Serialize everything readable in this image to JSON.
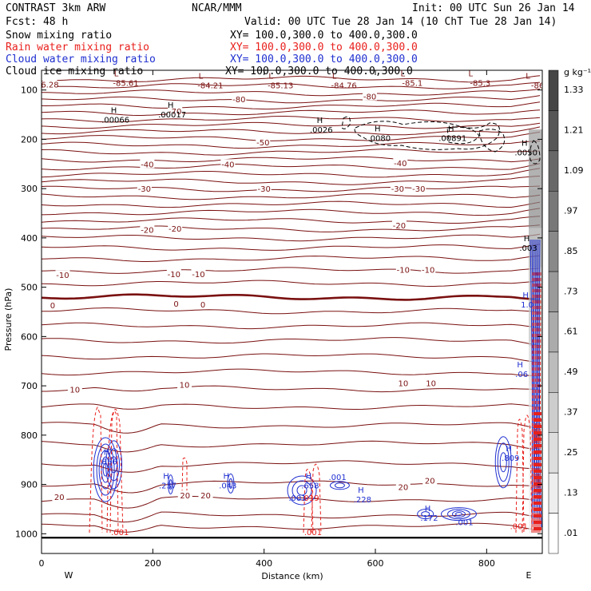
{
  "header": {
    "title": "CONTRAST  3km ARW",
    "center": "NCAR/MMM",
    "init": "Init: 00 UTC Sun 26 Jan 14",
    "fcst": "Fcst:   48 h",
    "valid": "Valid: 00 UTC Tue 28 Jan 14 (10 ChT Tue 28 Jan 14)"
  },
  "legend": [
    {
      "label": "Snow mixing ratio",
      "xy": "XY= 100.0,300.0 to 400.0,300.0",
      "color": "#000000"
    },
    {
      "label": "Rain water mixing ratio",
      "xy": "XY= 100.0,300.0 to 400.0,300.0",
      "color": "#e8201c"
    },
    {
      "label": "Cloud water mixing ratio",
      "xy": "XY= 100.0,300.0 to 400.0,300.0",
      "color": "#1f2fd0"
    },
    {
      "label": "Cloud ice mixing ratio",
      "xy": "XY= 100.0,300.0 to 400.0,300.0",
      "color": "#000000"
    }
  ],
  "colorbar": {
    "unit": "g kg⁻¹",
    "ticks": [
      "1.33",
      "1.21",
      "1.09",
      ".97",
      ".85",
      ".73",
      ".61",
      ".49",
      ".37",
      ".25",
      ".13",
      ".01"
    ]
  },
  "colors": {
    "isotherm": "#7a1010",
    "rain": "#e8201c",
    "cloud": "#1f2fd0",
    "ice": "#000000"
  },
  "chart_data": {
    "type": "contour",
    "xlabel": "Distance (km)",
    "ylabel": "Pressure (hPa)",
    "xlim": [
      0,
      900
    ],
    "ylim": [
      1040,
      60
    ],
    "y_scale": "linear-inverted",
    "x_ticks": [
      {
        "value": 0,
        "label": "0"
      },
      {
        "value": 200,
        "label": "200"
      },
      {
        "value": 400,
        "label": "400"
      },
      {
        "value": 600,
        "label": "600"
      },
      {
        "value": 800,
        "label": "800"
      }
    ],
    "y_ticks": [
      {
        "value": 100,
        "label": "100"
      },
      {
        "value": 200,
        "label": "200"
      },
      {
        "value": 300,
        "label": "300"
      },
      {
        "value": 400,
        "label": "400"
      },
      {
        "value": 500,
        "label": "500"
      },
      {
        "value": 600,
        "label": "600"
      },
      {
        "value": 700,
        "label": "700"
      },
      {
        "value": 800,
        "label": "800"
      },
      {
        "value": 900,
        "label": "900"
      },
      {
        "value": 1000,
        "label": "1000"
      }
    ],
    "end_labels": {
      "left": "W",
      "right": "E"
    },
    "isotherm_pressures": [
      78,
      92,
      106,
      120,
      133,
      146,
      159,
      172,
      185,
      198,
      212,
      226,
      241,
      256,
      271,
      286,
      301,
      316,
      332,
      348,
      365,
      382,
      400,
      420,
      442,
      466,
      492,
      520,
      548,
      578,
      608,
      640,
      672,
      706,
      742,
      780,
      818,
      858,
      898,
      930,
      962,
      985
    ],
    "isotherm_labels": [
      {
        "text": "-80",
        "x": 355,
        "p": 118
      },
      {
        "text": "-80",
        "x": 590,
        "p": 113
      },
      {
        "text": "-70",
        "x": 240,
        "p": 143
      },
      {
        "text": "-50",
        "x": 398,
        "p": 206
      },
      {
        "text": "-40",
        "x": 190,
        "p": 250
      },
      {
        "text": "-40",
        "x": 335,
        "p": 250
      },
      {
        "text": "-40",
        "x": 645,
        "p": 248
      },
      {
        "text": "-30",
        "x": 185,
        "p": 300
      },
      {
        "text": "-30",
        "x": 400,
        "p": 300
      },
      {
        "text": "-30",
        "x": 640,
        "p": 300
      },
      {
        "text": "-30",
        "x": 678,
        "p": 300
      },
      {
        "text": "-20",
        "x": 190,
        "p": 383
      },
      {
        "text": "-20",
        "x": 240,
        "p": 381
      },
      {
        "text": "-20",
        "x": 643,
        "p": 374
      },
      {
        "text": "-10",
        "x": 38,
        "p": 475
      },
      {
        "text": "-10",
        "x": 238,
        "p": 473
      },
      {
        "text": "-10",
        "x": 282,
        "p": 473
      },
      {
        "text": "-10",
        "x": 650,
        "p": 464
      },
      {
        "text": "-10",
        "x": 695,
        "p": 464
      },
      {
        "text": "0",
        "x": 20,
        "p": 536
      },
      {
        "text": "0",
        "x": 242,
        "p": 533
      },
      {
        "text": "0",
        "x": 290,
        "p": 535
      },
      {
        "text": "10",
        "x": 60,
        "p": 707
      },
      {
        "text": "10",
        "x": 257,
        "p": 697
      },
      {
        "text": "10",
        "x": 650,
        "p": 694
      },
      {
        "text": "10",
        "x": 700,
        "p": 694
      },
      {
        "text": "20",
        "x": 32,
        "p": 925
      },
      {
        "text": "20",
        "x": 258,
        "p": 922
      },
      {
        "text": "20",
        "x": 295,
        "p": 922
      },
      {
        "text": "20",
        "x": 650,
        "p": 905
      },
      {
        "text": "20",
        "x": 698,
        "p": 892
      },
      {
        "text": "6.28",
        "x": 15,
        "p": 88
      }
    ],
    "low_labels": [
      {
        "value": "-85.61",
        "x": 140,
        "p": 85
      },
      {
        "value": "-84.21",
        "x": 292,
        "p": 90
      },
      {
        "value": "-85.13",
        "x": 418,
        "p": 90
      },
      {
        "value": "-84.76",
        "x": 532,
        "p": 90
      },
      {
        "value": "-85.1",
        "x": 655,
        "p": 85
      },
      {
        "value": "-85.3",
        "x": 777,
        "p": 85
      },
      {
        "value": "-86",
        "x": 880,
        "p": 90
      }
    ],
    "maxima": [
      {
        "value": ".00066",
        "x": 130,
        "p": 163,
        "color": "ice"
      },
      {
        "value": ".00017",
        "x": 232,
        "p": 152,
        "color": "ice"
      },
      {
        "value": ".0026",
        "x": 500,
        "p": 183,
        "color": "ice"
      },
      {
        "value": ".0080",
        "x": 604,
        "p": 200,
        "color": "ice"
      },
      {
        "value": ".00891",
        "x": 736,
        "p": 200,
        "color": "ice"
      },
      {
        "value": ".0050",
        "x": 868,
        "p": 229,
        "color": "ice"
      },
      {
        "value": ".003",
        "x": 872,
        "p": 423,
        "color": "ice"
      },
      {
        "value": ".856",
        "x": 117,
        "p": 856,
        "color": "cloud"
      },
      {
        "value": ".237",
        "x": 224,
        "p": 905,
        "color": "cloud"
      },
      {
        "value": ".043",
        "x": 332,
        "p": 905,
        "color": "cloud"
      },
      {
        "value": ".658",
        "x": 480,
        "p": 905,
        "color": "cloud"
      },
      {
        "value": ".228",
        "x": 574,
        "p": 933,
        "color": "cloud"
      },
      {
        "value": ".172",
        "x": 694,
        "p": 970,
        "color": "cloud"
      },
      {
        "value": ".809",
        "x": 840,
        "p": 849,
        "color": "cloud"
      },
      {
        "value": ".06",
        "x": 860,
        "p": 679,
        "color": "cloud"
      },
      {
        "value": "1.0",
        "x": 870,
        "p": 538,
        "color": "cloud"
      }
    ],
    "minor_labels": [
      {
        "value": ".001",
        "x": 141,
        "p": 998,
        "color": "rain"
      },
      {
        "value": ".001",
        "x": 460,
        "p": 928,
        "color": "cloud"
      },
      {
        "value": ".019",
        "x": 483,
        "p": 928,
        "color": "rain"
      },
      {
        "value": ".001",
        "x": 532,
        "p": 886,
        "color": "cloud"
      },
      {
        "value": ".001",
        "x": 488,
        "p": 998,
        "color": "rain"
      },
      {
        "value": ".001",
        "x": 760,
        "p": 978,
        "color": "cloud"
      },
      {
        "value": ".001",
        "x": 858,
        "p": 986,
        "color": "rain"
      }
    ],
    "colorbar_range": [
      0.01,
      1.39
    ]
  }
}
